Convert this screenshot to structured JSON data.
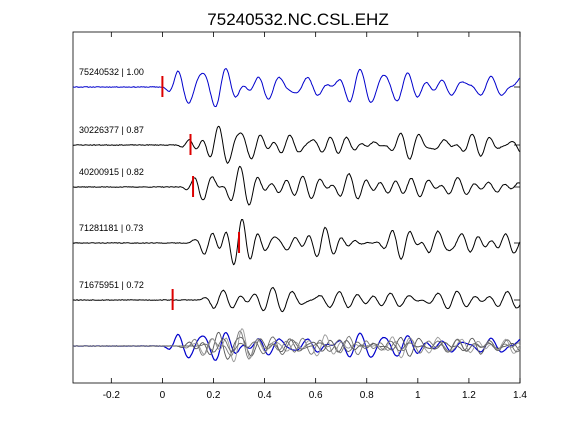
{
  "chart_data": {
    "type": "line",
    "title": "75240532.NC.CSL.EHZ",
    "xlabel": "",
    "ylabel": "",
    "xlim": [
      -0.35,
      1.4
    ],
    "xticks": [
      -0.2,
      0,
      0.2,
      0.4,
      0.6,
      0.8,
      1,
      1.2,
      1.4
    ],
    "xtick_labels": [
      "-0.2",
      "0",
      "0.2",
      "0.4",
      "0.6",
      "0.8",
      "1",
      "1.2",
      "1.4"
    ],
    "grid": false,
    "colors": {
      "reference": "#0000cc",
      "trace": "#000000",
      "stack": "#777777",
      "pick": "#dd0000"
    },
    "series": [
      {
        "label": "75240532 | 1.00",
        "color": "#0000cc",
        "pick": 0.0,
        "onset": 0.0,
        "amp": 1.0,
        "seed": 11
      },
      {
        "label": "30226377 | 0.87",
        "color": "#000000",
        "pick": 0.11,
        "onset": 0.05,
        "amp": 0.85,
        "seed": 23
      },
      {
        "label": "40200915 | 0.82",
        "color": "#000000",
        "pick": 0.12,
        "onset": 0.07,
        "amp": 0.8,
        "seed": 37
      },
      {
        "label": "71281181 | 0.73",
        "color": "#000000",
        "pick": 0.3,
        "onset": 0.1,
        "amp": 0.75,
        "seed": 41
      },
      {
        "label": "71675951 | 0.72",
        "color": "#000000",
        "pick": 0.04,
        "onset": 0.14,
        "amp": 0.8,
        "seed": 53
      }
    ]
  }
}
